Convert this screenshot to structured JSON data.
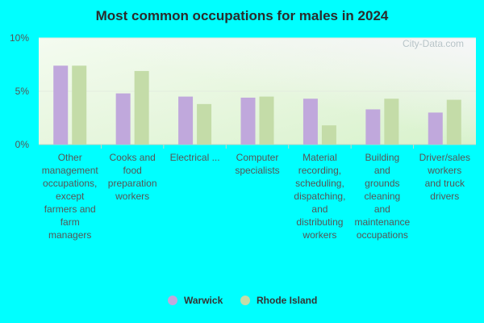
{
  "chart_data": {
    "type": "bar",
    "title": "Most common occupations for males in 2024",
    "xlabel": "",
    "ylabel": "",
    "ylim": [
      0,
      10
    ],
    "yticks": [
      "0%",
      "5%",
      "10%"
    ],
    "categories": [
      [
        "Other",
        "management",
        "occupations,",
        "except",
        "farmers and",
        "farm",
        "managers"
      ],
      [
        "Cooks and",
        "food",
        "preparation",
        "workers"
      ],
      [
        "Electrical ..."
      ],
      [
        "Computer",
        "specialists"
      ],
      [
        "Material",
        "recording,",
        "scheduling,",
        "dispatching,",
        "and",
        "distributing",
        "workers"
      ],
      [
        "Building",
        "and",
        "grounds",
        "cleaning",
        "and",
        "maintenance",
        "occupations"
      ],
      [
        "Driver/sales",
        "workers",
        "and truck",
        "drivers"
      ]
    ],
    "series": [
      {
        "name": "Warwick",
        "color": "#c0a8dc",
        "values": [
          7.4,
          4.8,
          4.5,
          4.4,
          4.3,
          3.3,
          3.0
        ]
      },
      {
        "name": "Rhode Island",
        "color": "#c4dca8",
        "values": [
          7.4,
          6.9,
          3.8,
          4.5,
          1.8,
          4.3,
          4.2
        ]
      }
    ],
    "grid": true,
    "legend": "bottom-center",
    "watermark": "City-Data.com"
  }
}
